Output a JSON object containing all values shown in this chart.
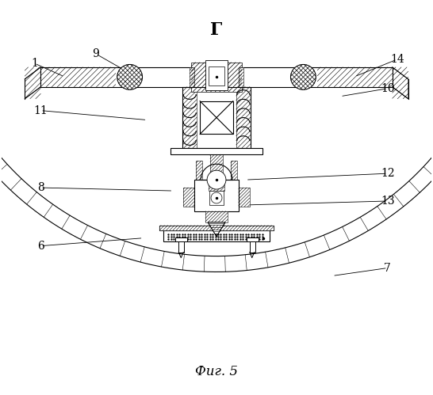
{
  "title": "Фиг. 5",
  "view_label": "Г",
  "bg_color": "#ffffff",
  "line_color": "#000000"
}
